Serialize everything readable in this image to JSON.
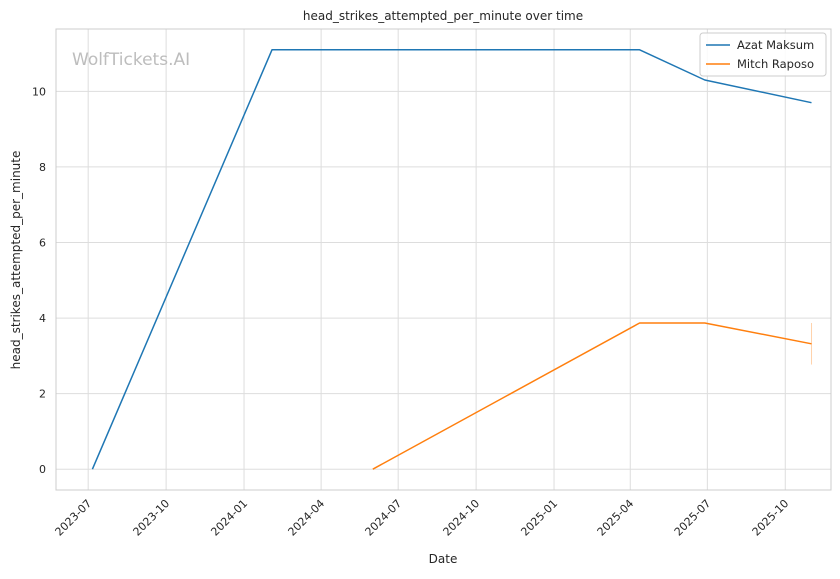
{
  "watermark": "WolfTickets.AI",
  "chart_data": {
    "type": "line",
    "title": "head_strikes_attempted_per_minute over time",
    "xlabel": "Date",
    "ylabel": "head_strikes_attempted_per_minute",
    "x_ticks": [
      "2023-07",
      "2023-10",
      "2024-01",
      "2024-04",
      "2024-07",
      "2024-10",
      "2025-01",
      "2025-04",
      "2025-07",
      "2025-10"
    ],
    "y_ticks": [
      0,
      2,
      4,
      6,
      8,
      10
    ],
    "xlim": [
      "2023-05-24",
      "2025-11-24"
    ],
    "ylim": [
      -0.55,
      11.65
    ],
    "grid": true,
    "legend_position": "top-right",
    "series": [
      {
        "name": "Azat Maksum",
        "color": "#1f77b4",
        "points": [
          {
            "x": "2023-07-06",
            "y": 0
          },
          {
            "x": "2024-02-03",
            "y": 11.1
          },
          {
            "x": "2025-04-12",
            "y": 11.1
          },
          {
            "x": "2025-06-28",
            "y": 10.3
          },
          {
            "x": "2025-11-01",
            "y": 9.7
          }
        ]
      },
      {
        "name": "Mitch Raposo",
        "color": "#ff7f0e",
        "points": [
          {
            "x": "2024-06-01",
            "y": 0
          },
          {
            "x": "2025-04-12",
            "y": 3.87
          },
          {
            "x": "2025-06-28",
            "y": 3.87
          },
          {
            "x": "2025-11-01",
            "y": 3.32
          }
        ]
      }
    ]
  }
}
